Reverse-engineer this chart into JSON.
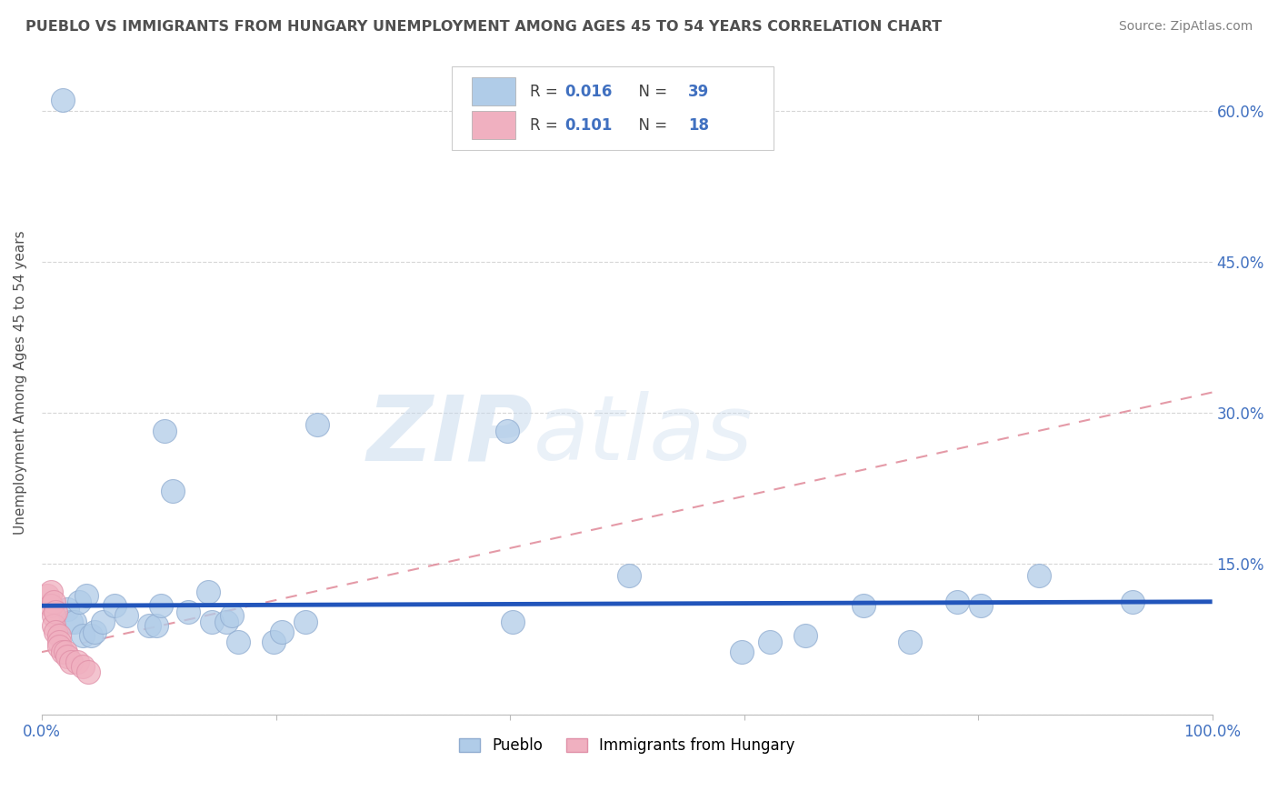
{
  "title": "PUEBLO VS IMMIGRANTS FROM HUNGARY UNEMPLOYMENT AMONG AGES 45 TO 54 YEARS CORRELATION CHART",
  "source": "Source: ZipAtlas.com",
  "ylabel": "Unemployment Among Ages 45 to 54 years",
  "xlim": [
    0,
    1.0
  ],
  "ylim": [
    0,
    0.66
  ],
  "y_ticks": [
    0.0,
    0.15,
    0.3,
    0.45,
    0.6
  ],
  "y_tick_labels": [
    "",
    "15.0%",
    "30.0%",
    "45.0%",
    "60.0%"
  ],
  "watermark_zip": "ZIP",
  "watermark_atlas": "atlas",
  "pueblo_color": "#b0cce8",
  "pueblo_edge": "#90acd0",
  "hungary_color": "#f0b0c0",
  "hungary_edge": "#e090a8",
  "pueblo_line_color": "#2255bb",
  "hungary_line_color": "#e08898",
  "legend_r1": "0.016",
  "legend_n1": "39",
  "legend_r2": "0.101",
  "legend_n2": "18",
  "pueblo_x": [
    0.018,
    0.022,
    0.025,
    0.028,
    0.032,
    0.035,
    0.038,
    0.042,
    0.045,
    0.052,
    0.062,
    0.072,
    0.092,
    0.098,
    0.102,
    0.105,
    0.112,
    0.125,
    0.142,
    0.145,
    0.158,
    0.162,
    0.168,
    0.198,
    0.205,
    0.225,
    0.235,
    0.398,
    0.402,
    0.502,
    0.598,
    0.622,
    0.652,
    0.702,
    0.742,
    0.782,
    0.802,
    0.852,
    0.932
  ],
  "pueblo_y": [
    0.61,
    0.105,
    0.092,
    0.092,
    0.112,
    0.078,
    0.118,
    0.078,
    0.082,
    0.092,
    0.108,
    0.098,
    0.088,
    0.088,
    0.108,
    0.282,
    0.222,
    0.102,
    0.122,
    0.092,
    0.092,
    0.098,
    0.072,
    0.072,
    0.082,
    0.092,
    0.288,
    0.282,
    0.092,
    0.138,
    0.062,
    0.072,
    0.078,
    0.108,
    0.072,
    0.112,
    0.108,
    0.138,
    0.112
  ],
  "hungary_x": [
    0.005,
    0.008,
    0.008,
    0.01,
    0.01,
    0.01,
    0.012,
    0.012,
    0.015,
    0.015,
    0.015,
    0.018,
    0.02,
    0.022,
    0.025,
    0.03,
    0.035,
    0.04
  ],
  "hungary_y": [
    0.118,
    0.122,
    0.108,
    0.112,
    0.098,
    0.088,
    0.102,
    0.082,
    0.078,
    0.072,
    0.068,
    0.062,
    0.062,
    0.058,
    0.052,
    0.052,
    0.048,
    0.042
  ],
  "pueblo_trend_x": [
    0.0,
    1.0
  ],
  "pueblo_trend_y": [
    0.108,
    0.112
  ],
  "hungary_trend_x": [
    0.0,
    1.0
  ],
  "hungary_trend_y": [
    0.062,
    0.32
  ],
  "background_color": "#ffffff",
  "grid_color": "#cccccc",
  "title_color": "#505050",
  "tick_color": "#4070c0",
  "source_color": "#808080"
}
